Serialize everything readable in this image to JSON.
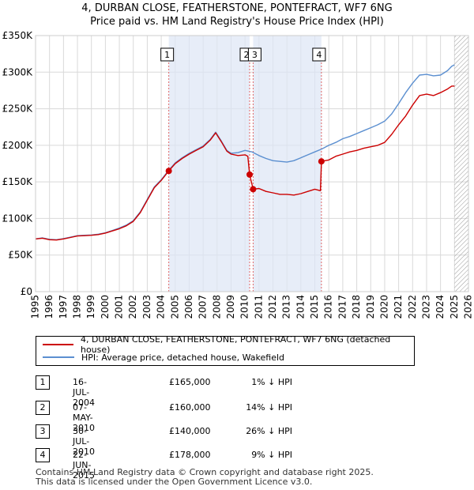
{
  "chart_data": {
    "type": "line",
    "title": "4, DURBAN CLOSE, FEATHERSTONE, PONTEFRACT, WF7 6NG",
    "subtitle": "Price paid vs. HM Land Registry's House Price Index (HPI)",
    "xlim": [
      1995,
      2026
    ],
    "ylim": [
      0,
      350000
    ],
    "y_ticks": [
      0,
      50000,
      100000,
      150000,
      200000,
      250000,
      300000,
      350000
    ],
    "y_tick_labels": [
      "£0",
      "£50K",
      "£100K",
      "£150K",
      "£200K",
      "£250K",
      "£300K",
      "£350K"
    ],
    "x_ticks": [
      1995,
      1996,
      1997,
      1998,
      1999,
      2000,
      2001,
      2002,
      2003,
      2004,
      2005,
      2006,
      2007,
      2008,
      2009,
      2010,
      2011,
      2012,
      2013,
      2014,
      2015,
      2016,
      2017,
      2018,
      2019,
      2020,
      2021,
      2022,
      2023,
      2024,
      2025,
      2026
    ],
    "x_tick_labels": [
      "1995",
      "1996",
      "1997",
      "1998",
      "1999",
      "2000",
      "2001",
      "2002",
      "2003",
      "2004",
      "2005",
      "2006",
      "2007",
      "2008",
      "2009",
      "2010",
      "2011",
      "2012",
      "2013",
      "2014",
      "2015",
      "2016",
      "2017",
      "2018",
      "2019",
      "2020",
      "2021",
      "2022",
      "2023",
      "2024",
      "2025",
      "2026"
    ],
    "grid": true,
    "shaded_spans": [
      [
        2004.54,
        2010.33
      ],
      [
        2010.58,
        2015.47
      ]
    ],
    "hatch_from": 2025.0,
    "series": [
      {
        "name": "4, DURBAN CLOSE, FEATHERSTONE, PONTEFRACT, WF7 6NG (detached house)",
        "color": "#cc0000",
        "points": [
          [
            1995.0,
            72000
          ],
          [
            1995.5,
            73000
          ],
          [
            1996.0,
            71000
          ],
          [
            1996.5,
            70500
          ],
          [
            1997.0,
            72000
          ],
          [
            1997.5,
            74000
          ],
          [
            1998.0,
            76000
          ],
          [
            1998.5,
            76500
          ],
          [
            1999.0,
            77000
          ],
          [
            1999.5,
            78000
          ],
          [
            2000.0,
            80000
          ],
          [
            2000.5,
            83000
          ],
          [
            2001.0,
            86000
          ],
          [
            2001.5,
            90000
          ],
          [
            2002.0,
            96000
          ],
          [
            2002.5,
            108000
          ],
          [
            2003.0,
            125000
          ],
          [
            2003.5,
            142000
          ],
          [
            2004.0,
            152000
          ],
          [
            2004.54,
            165000
          ],
          [
            2005.0,
            175000
          ],
          [
            2005.5,
            182000
          ],
          [
            2006.0,
            188000
          ],
          [
            2006.5,
            193000
          ],
          [
            2007.0,
            198000
          ],
          [
            2007.5,
            207000
          ],
          [
            2007.9,
            217000
          ],
          [
            2008.3,
            205000
          ],
          [
            2008.7,
            192000
          ],
          [
            2009.0,
            188000
          ],
          [
            2009.5,
            186000
          ],
          [
            2010.0,
            187000
          ],
          [
            2010.2,
            185000
          ],
          [
            2010.33,
            160000
          ],
          [
            2010.58,
            140000
          ],
          [
            2011.0,
            141000
          ],
          [
            2011.5,
            137000
          ],
          [
            2012.0,
            135000
          ],
          [
            2012.5,
            133000
          ],
          [
            2013.0,
            133000
          ],
          [
            2013.5,
            132000
          ],
          [
            2014.0,
            134000
          ],
          [
            2014.5,
            137000
          ],
          [
            2015.0,
            140000
          ],
          [
            2015.4,
            138000
          ],
          [
            2015.47,
            178000
          ],
          [
            2016.0,
            180000
          ],
          [
            2016.5,
            185000
          ],
          [
            2017.0,
            188000
          ],
          [
            2017.5,
            191000
          ],
          [
            2018.0,
            193000
          ],
          [
            2018.5,
            196000
          ],
          [
            2019.0,
            198000
          ],
          [
            2019.5,
            200000
          ],
          [
            2020.0,
            204000
          ],
          [
            2020.5,
            215000
          ],
          [
            2021.0,
            228000
          ],
          [
            2021.5,
            240000
          ],
          [
            2022.0,
            255000
          ],
          [
            2022.5,
            268000
          ],
          [
            2023.0,
            270000
          ],
          [
            2023.5,
            268000
          ],
          [
            2024.0,
            272000
          ],
          [
            2024.5,
            277000
          ],
          [
            2024.8,
            281000
          ],
          [
            2025.0,
            281000
          ]
        ]
      },
      {
        "name": "HPI: Average price, detached house, Wakefield",
        "color": "#5b8fd0",
        "points": [
          [
            1995.0,
            72000
          ],
          [
            1995.5,
            73500
          ],
          [
            1996.0,
            71500
          ],
          [
            1996.5,
            71000
          ],
          [
            1997.0,
            72500
          ],
          [
            1997.5,
            74500
          ],
          [
            1998.0,
            76500
          ],
          [
            1998.5,
            77000
          ],
          [
            1999.0,
            77500
          ],
          [
            1999.5,
            78500
          ],
          [
            2000.0,
            80500
          ],
          [
            2000.5,
            83500
          ],
          [
            2001.0,
            87000
          ],
          [
            2001.5,
            91000
          ],
          [
            2002.0,
            97000
          ],
          [
            2002.5,
            109000
          ],
          [
            2003.0,
            126000
          ],
          [
            2003.5,
            143000
          ],
          [
            2004.0,
            153000
          ],
          [
            2004.54,
            166000
          ],
          [
            2005.0,
            176000
          ],
          [
            2005.5,
            183000
          ],
          [
            2006.0,
            189000
          ],
          [
            2006.5,
            194000
          ],
          [
            2007.0,
            199000
          ],
          [
            2007.5,
            208000
          ],
          [
            2007.9,
            218000
          ],
          [
            2008.3,
            206000
          ],
          [
            2008.7,
            193000
          ],
          [
            2009.0,
            189000
          ],
          [
            2009.5,
            190000
          ],
          [
            2010.0,
            193000
          ],
          [
            2010.5,
            191000
          ],
          [
            2011.0,
            186000
          ],
          [
            2011.5,
            182000
          ],
          [
            2012.0,
            179000
          ],
          [
            2012.5,
            178000
          ],
          [
            2013.0,
            177000
          ],
          [
            2013.5,
            179000
          ],
          [
            2014.0,
            183000
          ],
          [
            2014.5,
            187000
          ],
          [
            2015.0,
            191000
          ],
          [
            2015.5,
            195000
          ],
          [
            2016.0,
            200000
          ],
          [
            2016.5,
            204000
          ],
          [
            2017.0,
            209000
          ],
          [
            2017.5,
            212000
          ],
          [
            2018.0,
            216000
          ],
          [
            2018.5,
            220000
          ],
          [
            2019.0,
            224000
          ],
          [
            2019.5,
            228000
          ],
          [
            2020.0,
            233000
          ],
          [
            2020.5,
            243000
          ],
          [
            2021.0,
            257000
          ],
          [
            2021.5,
            272000
          ],
          [
            2022.0,
            285000
          ],
          [
            2022.5,
            296000
          ],
          [
            2023.0,
            297000
          ],
          [
            2023.5,
            295000
          ],
          [
            2024.0,
            296000
          ],
          [
            2024.5,
            302000
          ],
          [
            2024.8,
            308000
          ],
          [
            2025.0,
            310000
          ]
        ]
      }
    ],
    "markers": [
      {
        "label": "1",
        "x": 2004.54,
        "y": 165000
      },
      {
        "label": "2",
        "x": 2010.33,
        "y": 160000
      },
      {
        "label": "3",
        "x": 2010.58,
        "y": 140000
      },
      {
        "label": "4",
        "x": 2015.47,
        "y": 178000
      }
    ]
  },
  "legend": {
    "red_label": "4, DURBAN CLOSE, FEATHERSTONE, PONTEFRACT, WF7 6NG (detached house)",
    "blue_label": "HPI: Average price, detached house, Wakefield",
    "red_color": "#cc0000",
    "blue_color": "#5b8fd0"
  },
  "transactions": [
    {
      "num": "1",
      "date": "16-JUL-2004",
      "price": "£165,000",
      "hpi": "1% ↓ HPI"
    },
    {
      "num": "2",
      "date": "07-MAY-2010",
      "price": "£160,000",
      "hpi": "14% ↓ HPI"
    },
    {
      "num": "3",
      "date": "30-JUL-2010",
      "price": "£140,000",
      "hpi": "26% ↓ HPI"
    },
    {
      "num": "4",
      "date": "22-JUN-2015",
      "price": "£178,000",
      "hpi": "9% ↓ HPI"
    }
  ],
  "footer": {
    "line1": "Contains HM Land Registry data © Crown copyright and database right 2025.",
    "line2": "This data is licensed under the Open Government Licence v3.0."
  }
}
